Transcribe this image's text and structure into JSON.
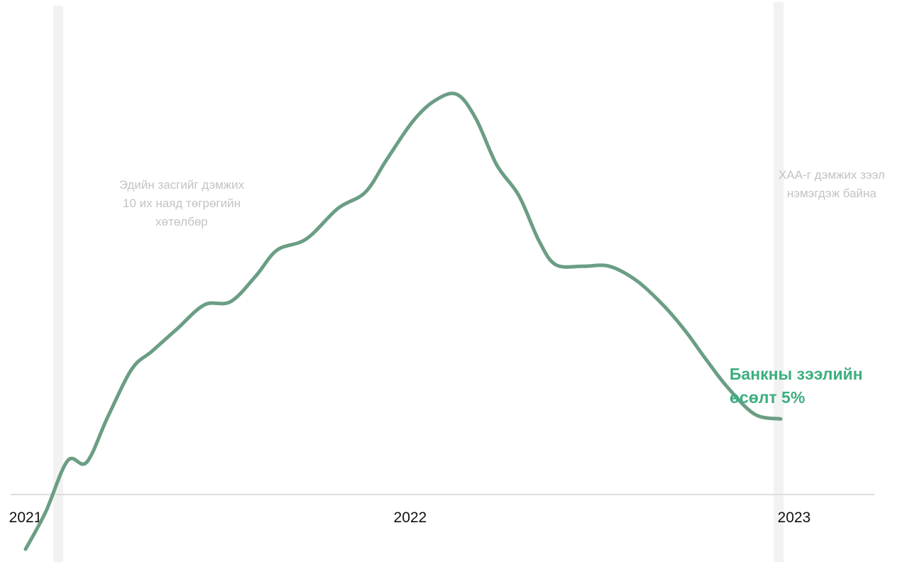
{
  "chart_data": {
    "type": "line",
    "x_ticks": [
      "2021",
      "2022",
      "2023"
    ],
    "ylim": [
      -4.2,
      29
    ],
    "grid": false,
    "colors": {
      "line": "#6b9e84",
      "end_label": "#3dae7f",
      "annotation_text": "#c3c3c3",
      "annotation_band": "#f2f2f2",
      "baseline": "#dddddd",
      "tick_text": "#111111"
    },
    "series": [
      {
        "x": [
          "2021-01-01",
          "2021-01-20",
          "2021-02-10",
          "2021-02-28",
          "2021-03-20",
          "2021-04-12",
          "2021-05-01",
          "2021-05-25",
          "2021-06-20",
          "2021-07-15",
          "2021-08-08",
          "2021-08-28",
          "2021-09-25",
          "2021-10-25",
          "2021-11-20",
          "2021-12-10",
          "2022-01-04",
          "2022-01-25",
          "2022-02-15",
          "2022-03-05",
          "2022-03-25",
          "2022-04-15",
          "2022-05-04",
          "2022-05-20",
          "2022-06-15",
          "2022-07-10",
          "2022-08-05",
          "2022-08-30",
          "2022-09-20",
          "2022-10-10",
          "2022-10-30",
          "2022-11-25",
          "2022-12-20"
        ],
        "y": [
          -3.4,
          -1.1,
          2.1,
          2.0,
          4.8,
          7.8,
          8.9,
          10.3,
          11.8,
          12.0,
          13.6,
          15.2,
          15.9,
          17.8,
          18.8,
          20.8,
          23.2,
          24.5,
          24.9,
          23.4,
          20.5,
          18.6,
          15.8,
          14.3,
          14.2,
          14.2,
          13.3,
          11.8,
          10.2,
          8.4,
          6.7,
          5.0,
          4.7
        ],
        "end_label": "Банкны зээлийн өсөлт 5%"
      }
    ],
    "annotations": [
      {
        "date": "2021-02-01",
        "text": "Эдийн засгийг дэмжих 10 их наяд төгрөгийн хөтөлбөр"
      },
      {
        "date": "2022-12-18",
        "text": "ХАА-г дэмжих зээл нэмэгдэж байна"
      }
    ],
    "end_label": {
      "line1": "Банкны зээлийн",
      "line2": "өсөлт 5%"
    },
    "annotation_lines": {
      "left": [
        "Эдийн засгийг дэмжих",
        "10 их наяд төгрөгийн",
        "хөтөлбөр"
      ],
      "right": [
        "ХАА-г дэмжих зээл",
        "нэмэгдэж байна"
      ]
    }
  }
}
